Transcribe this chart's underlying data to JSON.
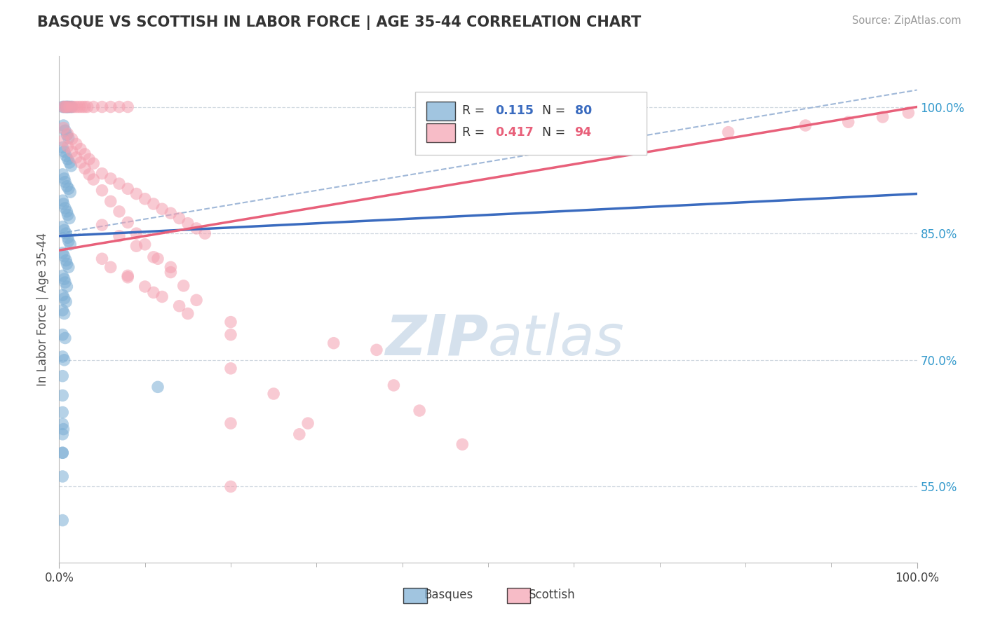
{
  "title": "BASQUE VS SCOTTISH IN LABOR FORCE | AGE 35-44 CORRELATION CHART",
  "source": "Source: ZipAtlas.com",
  "ylabel": "In Labor Force | Age 35-44",
  "ytick_labels": [
    "55.0%",
    "70.0%",
    "85.0%",
    "100.0%"
  ],
  "ytick_values": [
    0.55,
    0.7,
    0.85,
    1.0
  ],
  "xtick_labels": [
    "0.0%",
    "100.0%"
  ],
  "xtick_values": [
    0.0,
    1.0
  ],
  "legend_basque_r": "0.115",
  "legend_basque_n": "80",
  "legend_scottish_r": "0.417",
  "legend_scottish_n": "94",
  "basque_color": "#7aadd4",
  "scottish_color": "#f4a0b0",
  "basque_line_color": "#3a6bbf",
  "scottish_line_color": "#e8607a",
  "legend_text_blue": "#3a6bbf",
  "legend_text_pink": "#e8607a",
  "dashed_line_color": "#a0b8d8",
  "grid_color": "#d0d8e0",
  "watermark_text": "ZIPatlas",
  "watermark_color": "#c8d8e8",
  "basque_scatter_x": [
    0.004,
    0.006,
    0.008,
    0.009,
    0.01,
    0.011,
    0.013,
    0.015,
    0.005,
    0.007,
    0.009,
    0.011,
    0.004,
    0.006,
    0.008,
    0.01,
    0.012,
    0.014,
    0.004,
    0.006,
    0.007,
    0.009,
    0.011,
    0.013,
    0.004,
    0.005,
    0.007,
    0.009,
    0.01,
    0.012,
    0.004,
    0.006,
    0.008,
    0.01,
    0.011,
    0.013,
    0.004,
    0.006,
    0.008,
    0.009,
    0.011,
    0.004,
    0.006,
    0.007,
    0.009,
    0.004,
    0.006,
    0.008,
    0.004,
    0.006,
    0.004,
    0.007,
    0.004,
    0.006,
    0.004,
    0.004,
    0.004,
    0.004,
    0.004,
    0.004,
    0.115,
    0.004,
    0.005,
    0.004,
    0.004
  ],
  "basque_scatter_y": [
    1.0,
    1.0,
    1.0,
    1.0,
    1.0,
    1.0,
    1.0,
    1.0,
    0.978,
    0.972,
    0.967,
    0.963,
    0.952,
    0.947,
    0.942,
    0.938,
    0.934,
    0.93,
    0.92,
    0.915,
    0.911,
    0.906,
    0.903,
    0.899,
    0.889,
    0.885,
    0.88,
    0.876,
    0.872,
    0.868,
    0.858,
    0.854,
    0.85,
    0.845,
    0.841,
    0.837,
    0.827,
    0.823,
    0.818,
    0.814,
    0.81,
    0.8,
    0.796,
    0.792,
    0.787,
    0.777,
    0.773,
    0.769,
    0.759,
    0.755,
    0.73,
    0.726,
    0.704,
    0.7,
    0.681,
    0.658,
    0.638,
    0.612,
    0.59,
    0.562,
    0.668,
    0.624,
    0.618,
    0.59,
    0.51
  ],
  "scottish_scatter_x": [
    0.005,
    0.007,
    0.009,
    0.012,
    0.015,
    0.018,
    0.021,
    0.024,
    0.027,
    0.03,
    0.033,
    0.04,
    0.05,
    0.06,
    0.07,
    0.08,
    0.005,
    0.01,
    0.015,
    0.02,
    0.025,
    0.03,
    0.035,
    0.04,
    0.05,
    0.06,
    0.07,
    0.08,
    0.09,
    0.1,
    0.11,
    0.12,
    0.13,
    0.14,
    0.15,
    0.16,
    0.17,
    0.005,
    0.01,
    0.015,
    0.02,
    0.025,
    0.03,
    0.035,
    0.04,
    0.05,
    0.06,
    0.07,
    0.08,
    0.09,
    0.1,
    0.115,
    0.13,
    0.145,
    0.16,
    0.05,
    0.07,
    0.09,
    0.11,
    0.13,
    0.05,
    0.08,
    0.11,
    0.15,
    0.2,
    0.2,
    0.39,
    0.25,
    0.42,
    0.29,
    0.47,
    0.06,
    0.08,
    0.1,
    0.12,
    0.14,
    0.2,
    0.32,
    0.37,
    0.2,
    0.28,
    0.2,
    0.78,
    0.87,
    0.92,
    0.96,
    0.99
  ],
  "scottish_scatter_y": [
    1.0,
    1.0,
    1.0,
    1.0,
    1.0,
    1.0,
    1.0,
    1.0,
    1.0,
    1.0,
    1.0,
    1.0,
    1.0,
    1.0,
    1.0,
    1.0,
    0.975,
    0.968,
    0.962,
    0.956,
    0.95,
    0.944,
    0.938,
    0.933,
    0.921,
    0.915,
    0.909,
    0.903,
    0.897,
    0.891,
    0.885,
    0.879,
    0.874,
    0.868,
    0.862,
    0.856,
    0.85,
    0.96,
    0.953,
    0.947,
    0.94,
    0.934,
    0.927,
    0.92,
    0.914,
    0.901,
    0.888,
    0.876,
    0.863,
    0.85,
    0.837,
    0.82,
    0.804,
    0.788,
    0.771,
    0.86,
    0.847,
    0.835,
    0.822,
    0.81,
    0.82,
    0.8,
    0.78,
    0.755,
    0.73,
    0.69,
    0.67,
    0.66,
    0.64,
    0.625,
    0.6,
    0.81,
    0.798,
    0.787,
    0.775,
    0.764,
    0.745,
    0.72,
    0.712,
    0.625,
    0.612,
    0.55,
    0.97,
    0.978,
    0.982,
    0.988,
    0.993
  ],
  "basque_trend": [
    0.0,
    1.0,
    0.847,
    0.897
  ],
  "scottish_trend": [
    0.0,
    1.0,
    0.83,
    1.0
  ],
  "dashed_trend": [
    0.0,
    1.0,
    0.85,
    1.02
  ],
  "xlim": [
    0.0,
    1.0
  ],
  "ylim": [
    0.46,
    1.06
  ]
}
